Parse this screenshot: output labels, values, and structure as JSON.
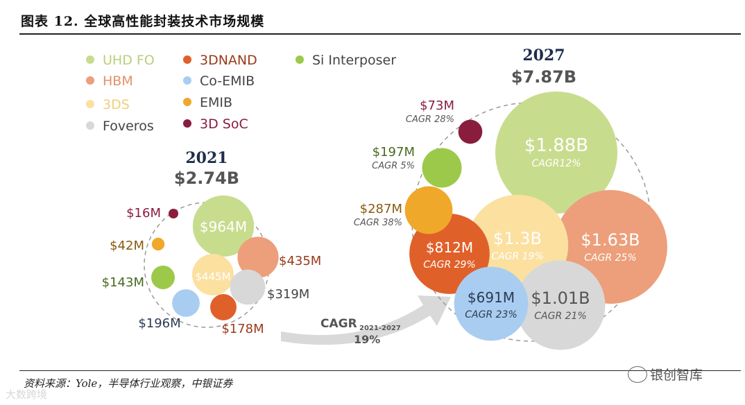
{
  "header": {
    "title": "图表 12. 全球高性能封装技术市场规模"
  },
  "footer": {
    "source": "资料来源：Yole，半导体行业观察，中银证券",
    "watermark_left": "大数跨境",
    "watermark_right": "银创智库"
  },
  "chart_data": {
    "type": "bubble",
    "legend": [
      {
        "name": "UHD FO",
        "color": "#c8dc8e"
      },
      {
        "name": "HBM",
        "color": "#ec9f7a"
      },
      {
        "name": "3DS",
        "color": "#fbe0a0"
      },
      {
        "name": "Foveros",
        "color": "#d8d8d8"
      },
      {
        "name": "3DNAND",
        "color": "#e0602a"
      },
      {
        "name": "Co-EMIB",
        "color": "#a9cdf0"
      },
      {
        "name": "EMIB",
        "color": "#f0a82a"
      },
      {
        "name": "3D SoC",
        "color": "#8a1d3e"
      },
      {
        "name": "Si Interposer",
        "color": "#9cc94a"
      }
    ],
    "years": [
      {
        "year": "2021",
        "total": "$2.74B",
        "items": [
          {
            "series": "UHD FO",
            "value": 964,
            "unit": "M",
            "label": "$964M"
          },
          {
            "series": "HBM",
            "value": 435,
            "unit": "M",
            "label": "$435M"
          },
          {
            "series": "3DS",
            "value": 445,
            "unit": "M",
            "label": "$445M"
          },
          {
            "series": "Foveros",
            "value": 319,
            "unit": "M",
            "label": "$319M"
          },
          {
            "series": "3DNAND",
            "value": 178,
            "unit": "M",
            "label": "$178M"
          },
          {
            "series": "Co-EMIB",
            "value": 196,
            "unit": "M",
            "label": "$196M"
          },
          {
            "series": "Si Interposer",
            "value": 143,
            "unit": "M",
            "label": "$143M"
          },
          {
            "series": "EMIB",
            "value": 42,
            "unit": "M",
            "label": "$42M"
          },
          {
            "series": "3D SoC",
            "value": 16,
            "unit": "M",
            "label": "$16M"
          }
        ]
      },
      {
        "year": "2027",
        "total": "$7.87B",
        "items": [
          {
            "series": "UHD FO",
            "value": 1880,
            "unit": "M",
            "label": "$1.88B",
            "cagr": "CAGR12%"
          },
          {
            "series": "HBM",
            "value": 1630,
            "unit": "M",
            "label": "$1.63B",
            "cagr": "CAGR 25%"
          },
          {
            "series": "3DS",
            "value": 1300,
            "unit": "M",
            "label": "$1.3B",
            "cagr": "CAGR 19%"
          },
          {
            "series": "Foveros",
            "value": 1010,
            "unit": "M",
            "label": "$1.01B",
            "cagr": "CAGR 21%"
          },
          {
            "series": "3DNAND",
            "value": 812,
            "unit": "M",
            "label": "$812M",
            "cagr": "CAGR 29%"
          },
          {
            "series": "Co-EMIB",
            "value": 691,
            "unit": "M",
            "label": "$691M",
            "cagr": "CAGR 23%"
          },
          {
            "series": "EMIB",
            "value": 287,
            "unit": "M",
            "label": "$287M",
            "cagr": "CAGR 38%"
          },
          {
            "series": "Si Interposer",
            "value": 197,
            "unit": "M",
            "label": "$197M",
            "cagr": "CAGR 5%"
          },
          {
            "series": "3D SoC",
            "value": 73,
            "unit": "M",
            "label": "$73M",
            "cagr": "CAGR 28%"
          }
        ]
      }
    ],
    "overall_cagr": {
      "label": "CAGR",
      "period": "2021-2027",
      "value": "19%"
    }
  }
}
